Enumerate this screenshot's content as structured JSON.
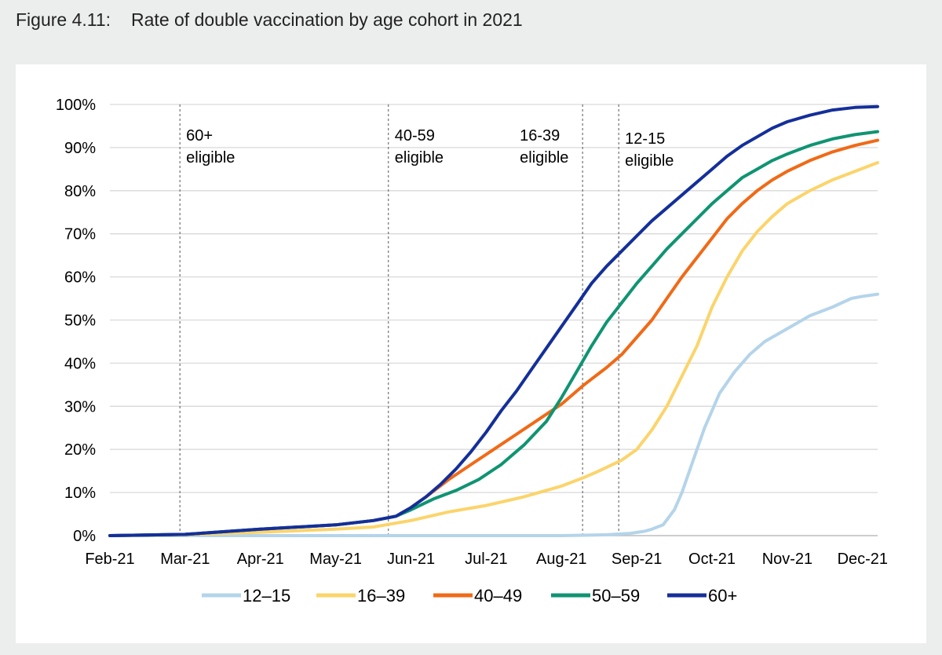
{
  "figure": {
    "number": "Figure 4.11:",
    "title": "Rate of double vaccination by age cohort in 2021"
  },
  "chart_data": {
    "type": "line",
    "title": "Rate of double vaccination by age cohort in 2021",
    "xlabel": "",
    "ylabel": "",
    "x_categories": [
      "Feb-21",
      "Mar-21",
      "Apr-21",
      "May-21",
      "Jun-21",
      "Jul-21",
      "Aug-21",
      "Sep-21",
      "Oct-21",
      "Nov-21",
      "Dec-21"
    ],
    "xlim": [
      0,
      10.2
    ],
    "ylim": [
      0,
      100
    ],
    "y_ticks": [
      0,
      10,
      20,
      30,
      40,
      50,
      60,
      70,
      80,
      90,
      100
    ],
    "y_tick_labels": [
      "0%",
      "10%",
      "20%",
      "30%",
      "40%",
      "50%",
      "60%",
      "70%",
      "80%",
      "90%",
      "100%"
    ],
    "grid": "horizontal",
    "legend_position": "bottom",
    "annotations": [
      {
        "x": 0.93,
        "line1": "60+",
        "line2": "eligible"
      },
      {
        "x": 3.7,
        "line1": "40-59",
        "line2": "eligible"
      },
      {
        "x": 6.28,
        "line1": "16-39",
        "line2": "eligible"
      },
      {
        "x": 6.76,
        "line1": "12-15",
        "line2": "eligible"
      }
    ],
    "series": [
      {
        "name": "12–15",
        "color": "#b4d4ea",
        "points": [
          [
            0,
            0
          ],
          [
            6.0,
            0
          ],
          [
            6.6,
            0.2
          ],
          [
            6.9,
            0.5
          ],
          [
            7.1,
            1
          ],
          [
            7.2,
            1.5
          ],
          [
            7.35,
            2.5
          ],
          [
            7.5,
            6
          ],
          [
            7.6,
            10
          ],
          [
            7.7,
            15
          ],
          [
            7.8,
            20
          ],
          [
            7.9,
            25
          ],
          [
            8.0,
            29
          ],
          [
            8.1,
            33
          ],
          [
            8.3,
            38
          ],
          [
            8.5,
            42
          ],
          [
            8.7,
            45
          ],
          [
            9.0,
            48
          ],
          [
            9.3,
            51
          ],
          [
            9.6,
            53
          ],
          [
            9.85,
            55
          ],
          [
            10.0,
            55.5
          ],
          [
            10.2,
            56
          ]
        ]
      },
      {
        "name": "16–39",
        "color": "#fbd46b",
        "points": [
          [
            0,
            0
          ],
          [
            1.0,
            0.2
          ],
          [
            2.0,
            0.8
          ],
          [
            3.0,
            1.5
          ],
          [
            3.5,
            2
          ],
          [
            4.0,
            3.5
          ],
          [
            4.5,
            5.5
          ],
          [
            5.0,
            7
          ],
          [
            5.5,
            9
          ],
          [
            6.0,
            11.5
          ],
          [
            6.3,
            13.5
          ],
          [
            6.5,
            15
          ],
          [
            6.8,
            17.5
          ],
          [
            7.0,
            20
          ],
          [
            7.2,
            24.5
          ],
          [
            7.4,
            30
          ],
          [
            7.6,
            37
          ],
          [
            7.8,
            44
          ],
          [
            8.0,
            53
          ],
          [
            8.2,
            60
          ],
          [
            8.4,
            66
          ],
          [
            8.6,
            70.5
          ],
          [
            8.8,
            74
          ],
          [
            9.0,
            77
          ],
          [
            9.3,
            80
          ],
          [
            9.6,
            82.5
          ],
          [
            9.9,
            84.5
          ],
          [
            10.2,
            86.5
          ]
        ]
      },
      {
        "name": "40–49",
        "color": "#f06a17",
        "points": [
          [
            0,
            0
          ],
          [
            1.0,
            0.3
          ],
          [
            2.0,
            1.5
          ],
          [
            3.0,
            2.5
          ],
          [
            3.5,
            3.5
          ],
          [
            3.8,
            4.5
          ],
          [
            4.0,
            6.5
          ],
          [
            4.2,
            9
          ],
          [
            4.5,
            13
          ],
          [
            4.8,
            16.5
          ],
          [
            5.1,
            20
          ],
          [
            5.4,
            23.5
          ],
          [
            5.7,
            27
          ],
          [
            6.0,
            30.5
          ],
          [
            6.3,
            35
          ],
          [
            6.6,
            39
          ],
          [
            6.8,
            42
          ],
          [
            7.0,
            46
          ],
          [
            7.2,
            50
          ],
          [
            7.4,
            55
          ],
          [
            7.6,
            60
          ],
          [
            7.8,
            64.5
          ],
          [
            8.0,
            69
          ],
          [
            8.2,
            73.5
          ],
          [
            8.4,
            77
          ],
          [
            8.6,
            80
          ],
          [
            8.8,
            82.5
          ],
          [
            9.0,
            84.5
          ],
          [
            9.3,
            87
          ],
          [
            9.6,
            89
          ],
          [
            9.9,
            90.5
          ],
          [
            10.2,
            91.7
          ]
        ]
      },
      {
        "name": "50–59",
        "color": "#0f9472",
        "points": [
          [
            0,
            0
          ],
          [
            1.0,
            0.3
          ],
          [
            2.0,
            1.5
          ],
          [
            3.0,
            2.5
          ],
          [
            3.5,
            3.5
          ],
          [
            3.8,
            4.5
          ],
          [
            4.0,
            6
          ],
          [
            4.3,
            8.5
          ],
          [
            4.6,
            10.5
          ],
          [
            4.9,
            13
          ],
          [
            5.2,
            16.5
          ],
          [
            5.5,
            21
          ],
          [
            5.8,
            26.5
          ],
          [
            6.0,
            32
          ],
          [
            6.2,
            38
          ],
          [
            6.4,
            44
          ],
          [
            6.6,
            49.5
          ],
          [
            6.8,
            54
          ],
          [
            7.0,
            58.5
          ],
          [
            7.2,
            62.5
          ],
          [
            7.4,
            66.5
          ],
          [
            7.6,
            70
          ],
          [
            7.8,
            73.5
          ],
          [
            8.0,
            77
          ],
          [
            8.2,
            80
          ],
          [
            8.4,
            83
          ],
          [
            8.6,
            85
          ],
          [
            8.8,
            87
          ],
          [
            9.0,
            88.5
          ],
          [
            9.3,
            90.5
          ],
          [
            9.6,
            92
          ],
          [
            9.9,
            93
          ],
          [
            10.2,
            93.7
          ]
        ]
      },
      {
        "name": "60+",
        "color": "#142f9a",
        "points": [
          [
            0,
            0
          ],
          [
            1.0,
            0.3
          ],
          [
            2.0,
            1.5
          ],
          [
            3.0,
            2.5
          ],
          [
            3.5,
            3.5
          ],
          [
            3.8,
            4.5
          ],
          [
            4.0,
            6.5
          ],
          [
            4.2,
            9
          ],
          [
            4.4,
            12
          ],
          [
            4.6,
            15.5
          ],
          [
            4.8,
            19.5
          ],
          [
            5.0,
            24
          ],
          [
            5.2,
            29
          ],
          [
            5.4,
            33.5
          ],
          [
            5.6,
            38.5
          ],
          [
            5.8,
            43.5
          ],
          [
            6.0,
            48.5
          ],
          [
            6.2,
            53.5
          ],
          [
            6.4,
            58.5
          ],
          [
            6.6,
            62.5
          ],
          [
            6.8,
            66
          ],
          [
            7.0,
            69.5
          ],
          [
            7.2,
            73
          ],
          [
            7.4,
            76
          ],
          [
            7.6,
            79
          ],
          [
            7.8,
            82
          ],
          [
            8.0,
            85
          ],
          [
            8.2,
            88
          ],
          [
            8.4,
            90.5
          ],
          [
            8.6,
            92.5
          ],
          [
            8.8,
            94.5
          ],
          [
            9.0,
            96
          ],
          [
            9.3,
            97.5
          ],
          [
            9.6,
            98.7
          ],
          [
            9.9,
            99.3
          ],
          [
            10.2,
            99.5
          ]
        ]
      }
    ]
  }
}
